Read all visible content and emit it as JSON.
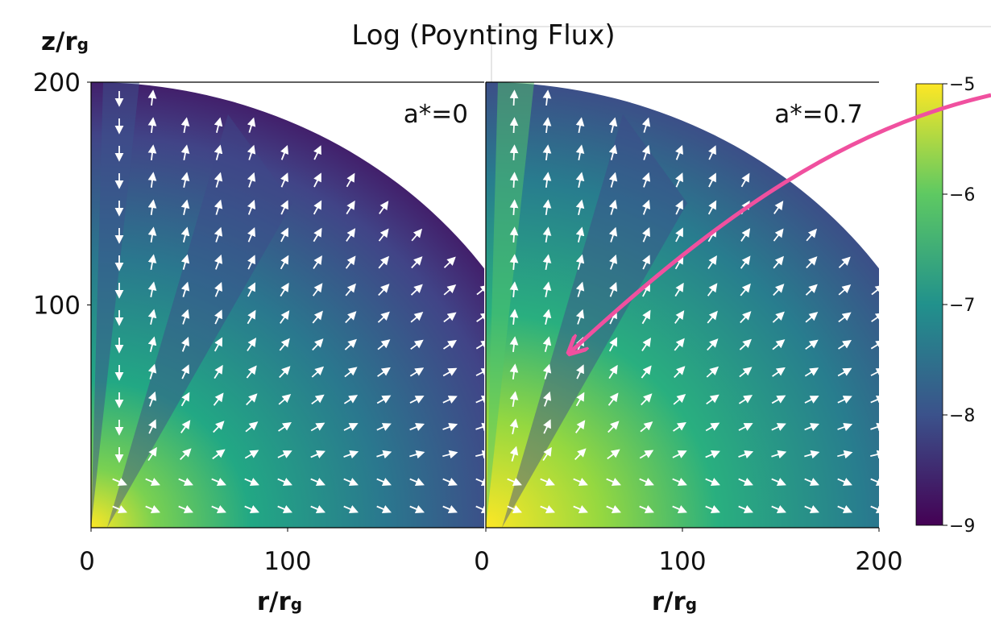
{
  "title": "Log (Poynting Flux)",
  "ylabel": {
    "text": "z/r",
    "sub": "g"
  },
  "chart_data": [
    {
      "type": "heatmap",
      "annotation": "a*=0",
      "xlabel": {
        "text": "r/r",
        "sub": "g"
      },
      "xlim": [
        0,
        200
      ],
      "ylim": [
        0,
        200
      ],
      "xticks": [
        0,
        100
      ],
      "yticks": [
        100,
        200
      ]
    },
    {
      "type": "heatmap",
      "annotation": "a*=0.7",
      "xlabel": {
        "text": "r/r",
        "sub": "g"
      },
      "xlim": [
        0,
        200
      ],
      "ylim": [
        0,
        200
      ],
      "xticks": [
        0,
        100,
        200
      ],
      "yticks": [],
      "clim": [
        -9,
        -5
      ],
      "cticks": [
        {
          "value": -5,
          "label": "−5"
        },
        {
          "value": -6,
          "label": "−6"
        },
        {
          "value": -7,
          "label": "−7"
        },
        {
          "value": -8,
          "label": "−8"
        },
        {
          "value": -9,
          "label": "−9"
        }
      ]
    }
  ]
}
